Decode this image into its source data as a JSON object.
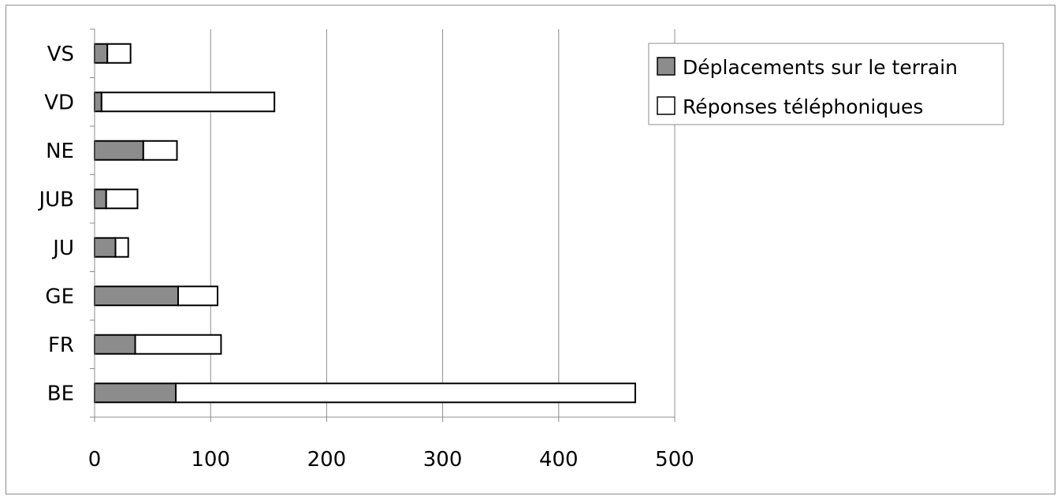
{
  "chart_data": {
    "type": "bar",
    "orientation": "horizontal",
    "stacked": true,
    "categories": [
      "BE",
      "FR",
      "GE",
      "JU",
      "JUB",
      "NE",
      "VD",
      "VS"
    ],
    "series": [
      {
        "name": "Déplacements sur le terrain",
        "values": [
          70,
          35,
          72,
          18,
          10,
          42,
          6,
          11
        ],
        "color": "#8c8c8c"
      },
      {
        "name": "Réponses téléphoniques",
        "values": [
          396,
          74,
          34,
          11,
          27,
          29,
          149,
          20
        ],
        "color": "#ffffff"
      }
    ],
    "xlim": [
      0,
      500
    ],
    "xticks": [
      "0",
      "100",
      "200",
      "300",
      "400",
      "500"
    ],
    "grid": "vertical",
    "legend_position": "top-right"
  }
}
